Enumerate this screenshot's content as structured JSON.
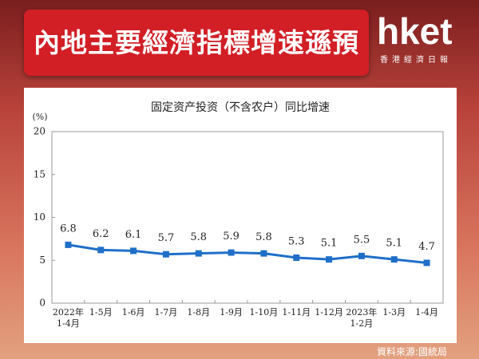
{
  "header": {
    "headline": "內地主要經濟指標增速遜預期",
    "logo": "hket",
    "logo_sub": "香港經濟日報",
    "source": "資料來源:國統局"
  },
  "chart_data": {
    "type": "line",
    "title": "固定资产投资（不含农户）同比增速",
    "y_unit": "(%)",
    "categories": [
      "2022年\n1-4月",
      "1-5月",
      "1-6月",
      "1-7月",
      "1-8月",
      "1-9月",
      "1-10月",
      "1-11月",
      "1-12月",
      "2023年\n1-2月",
      "1-3月",
      "1-4月"
    ],
    "series": [
      {
        "name": "固定资产投资",
        "color": "#1f6fc8",
        "values": [
          6.8,
          6.2,
          6.1,
          5.7,
          5.8,
          5.9,
          5.8,
          5.3,
          5.1,
          5.5,
          5.1,
          4.7
        ]
      }
    ],
    "ylim": [
      0,
      20
    ],
    "yticks": [
      0,
      5,
      10,
      15,
      20
    ],
    "grid": false
  }
}
